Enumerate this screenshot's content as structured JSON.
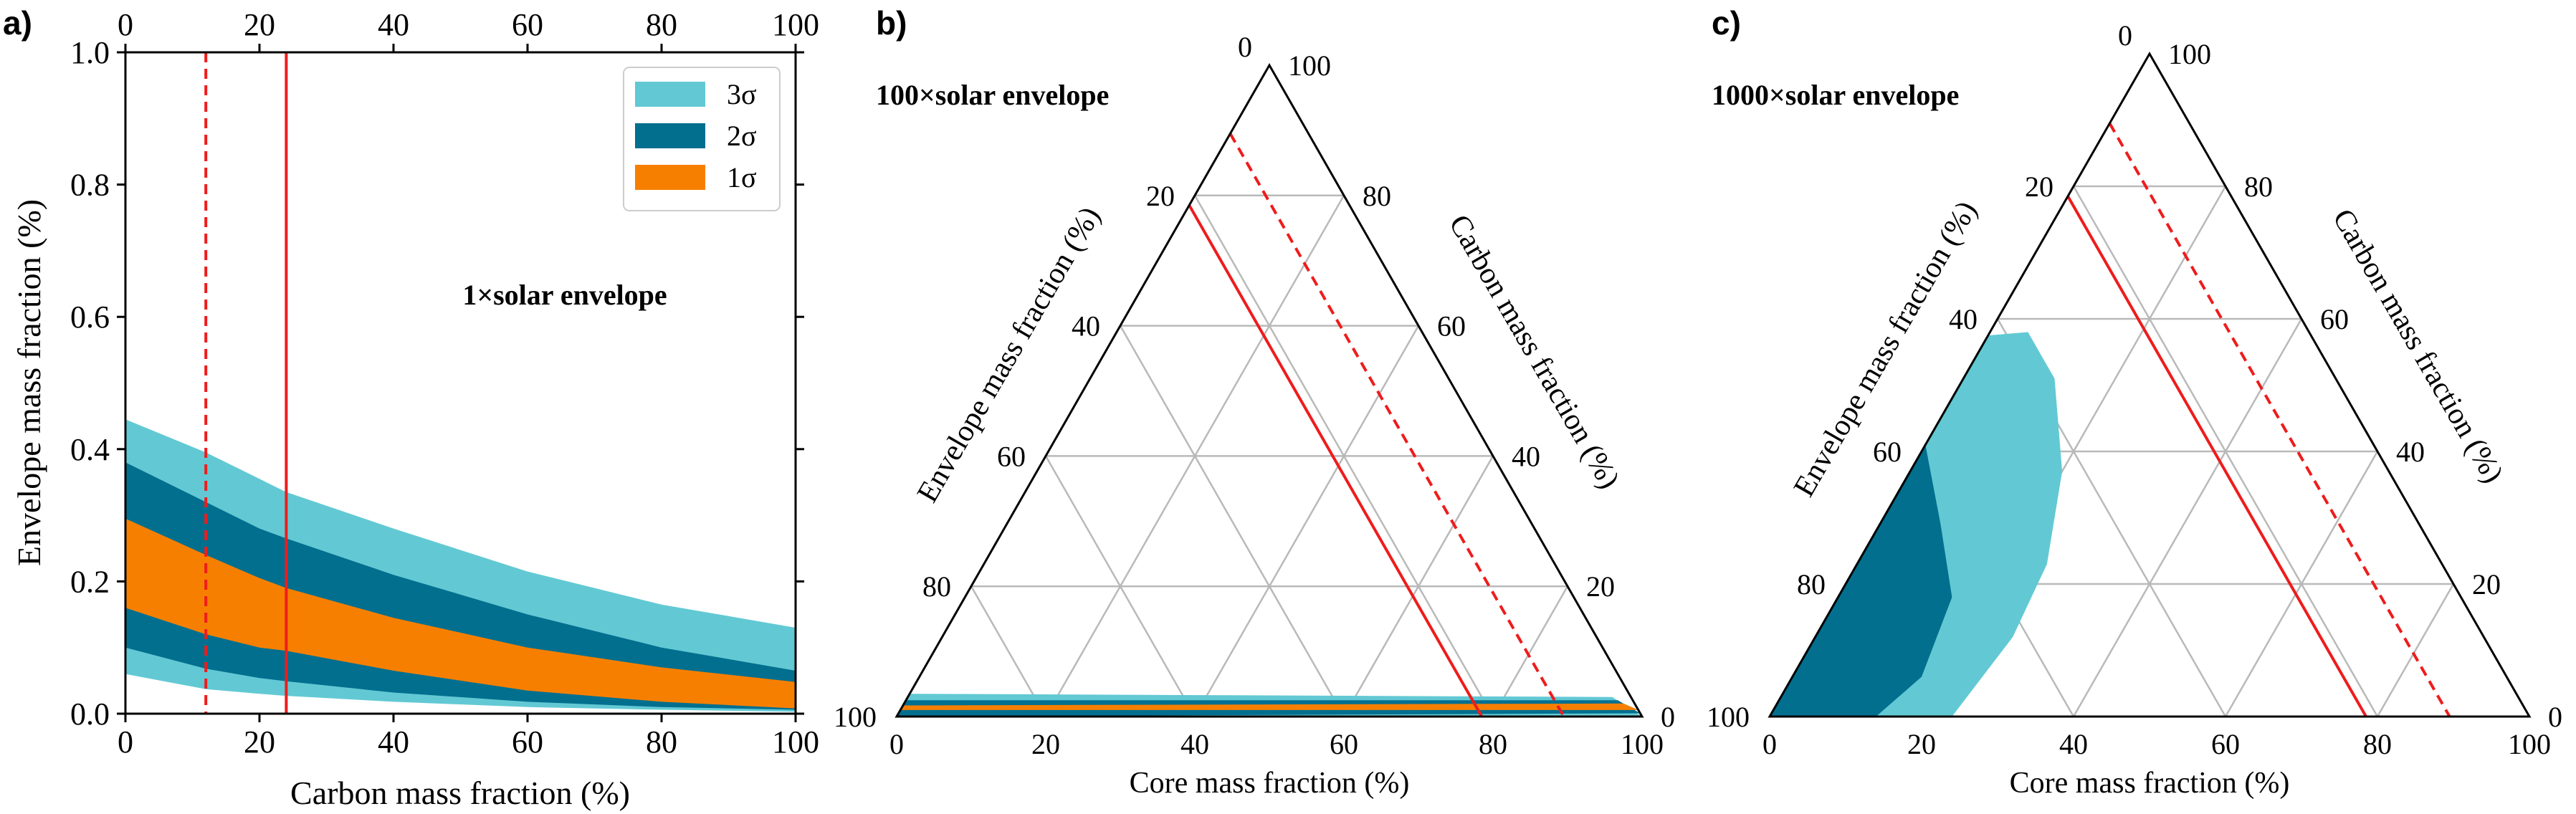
{
  "colors": {
    "sigma3": "#62c9d4",
    "sigma2": "#036f8f",
    "sigma1": "#f77f00",
    "red": "#ee1c1c",
    "grid": "#b9b9b9",
    "axis": "#000000"
  },
  "panel_a": {
    "label": "a)",
    "title": "1×solar envelope",
    "xlabel": "Carbon mass fraction (%)",
    "ylabel": "Envelope mass fraction (%)",
    "x_ticks": [
      "0",
      "20",
      "40",
      "60",
      "80",
      "100"
    ],
    "top_ticks": [
      "0",
      "20",
      "40",
      "60",
      "80",
      "100"
    ],
    "y_ticks": [
      "0.0",
      "0.2",
      "0.4",
      "0.6",
      "0.8",
      "1.0"
    ],
    "legend": [
      "3σ",
      "2σ",
      "1σ"
    ]
  },
  "panel_b": {
    "label": "b)",
    "title": "100×solar envelope",
    "bottom_label": "Core mass fraction (%)",
    "left_label": "Envelope mass fraction (%)",
    "right_label": "Carbon mass fraction (%)",
    "bottom_ticks": [
      "0",
      "20",
      "40",
      "60",
      "80",
      "100"
    ],
    "left_ticks": [
      "0",
      "20",
      "40",
      "60",
      "80",
      "100"
    ],
    "right_ticks": [
      "0",
      "20",
      "40",
      "60",
      "80",
      "100"
    ]
  },
  "panel_c": {
    "label": "c)",
    "title": "1000×solar envelope",
    "bottom_label": "Core mass fraction (%)",
    "left_label": "Envelope mass fraction (%)",
    "right_label": "Carbon mass fraction (%)",
    "bottom_ticks": [
      "0",
      "20",
      "40",
      "60",
      "80",
      "100"
    ],
    "left_ticks": [
      "0",
      "20",
      "40",
      "60",
      "80",
      "100"
    ],
    "right_ticks": [
      "0",
      "20",
      "40",
      "60",
      "80",
      "100"
    ]
  },
  "chart_data": [
    {
      "panel": "a",
      "type": "area",
      "title": "1×solar envelope",
      "xlabel": "Carbon mass fraction (%)",
      "ylabel": "Envelope mass fraction (%)",
      "xlim": [
        0,
        100
      ],
      "ylim": [
        0,
        1
      ],
      "grid": false,
      "legend_position": "top-right",
      "x": [
        0,
        12,
        20,
        24,
        40,
        60,
        80,
        100
      ],
      "series": [
        {
          "name": "3σ",
          "lower": [
            0.06,
            0.037,
            0.03,
            0.027,
            0.018,
            0.01,
            0.006,
            0.003
          ],
          "upper": [
            0.445,
            0.395,
            0.355,
            0.335,
            0.28,
            0.215,
            0.165,
            0.13
          ]
        },
        {
          "name": "2σ",
          "lower": [
            0.1,
            0.068,
            0.054,
            0.049,
            0.032,
            0.018,
            0.01,
            0.006
          ],
          "upper": [
            0.38,
            0.32,
            0.28,
            0.265,
            0.21,
            0.15,
            0.1,
            0.065
          ]
        },
        {
          "name": "1σ",
          "lower": [
            0.16,
            0.12,
            0.1,
            0.095,
            0.065,
            0.035,
            0.018,
            0.008
          ],
          "upper": [
            0.295,
            0.24,
            0.205,
            0.19,
            0.145,
            0.1,
            0.07,
            0.048
          ]
        }
      ],
      "vlines": [
        {
          "x": 24,
          "style": "solid"
        },
        {
          "x": 12,
          "style": "dashed"
        }
      ]
    },
    {
      "panel": "b",
      "type": "area",
      "title": "100×solar envelope",
      "components": [
        "Core mass fraction (%)",
        "Envelope mass fraction (%)",
        "Carbon mass fraction (%)"
      ],
      "regions": [
        {
          "name": "3σ",
          "points": [
            [
              0,
              100,
              0
            ],
            [
              0,
              96.5,
              3.5
            ],
            [
              94.5,
              2.5,
              3.0
            ],
            [
              100,
              0,
              0
            ]
          ]
        },
        {
          "name": "2σ",
          "points": [
            [
              0,
              100,
              0
            ],
            [
              0,
              97.5,
              2.5
            ],
            [
              95.5,
              2.0,
              2.5
            ],
            [
              99.5,
              0,
              0.5
            ]
          ]
        },
        {
          "name": "1σ",
          "points": [
            [
              0,
              99,
              1
            ],
            [
              0,
              98.3,
              1.7
            ],
            [
              96.5,
              1.5,
              2.0
            ],
            [
              99,
              0,
              1
            ]
          ]
        }
      ],
      "hlines": [
        {
          "envelope": 21.5,
          "style": "solid"
        },
        {
          "envelope": 10.5,
          "style": "dashed"
        }
      ]
    },
    {
      "panel": "c",
      "type": "area",
      "title": "1000×solar envelope",
      "components": [
        "Core mass fraction (%)",
        "Envelope mass fraction (%)",
        "Carbon mass fraction (%)"
      ],
      "regions": [
        {
          "name": "3σ",
          "points": [
            [
              0,
              100,
              0
            ],
            [
              0,
              42.5,
              57.5
            ],
            [
              5,
              37,
              58
            ],
            [
              12,
              37,
              51
            ],
            [
              20,
              43,
              37
            ],
            [
              25,
              52,
              23
            ],
            [
              26,
              62,
              12
            ],
            [
              24,
              76,
              0
            ]
          ]
        },
        {
          "name": "2σ",
          "points": [
            [
              0,
              100,
              0
            ],
            [
              0,
              59,
              41
            ],
            [
              8,
              63,
              29
            ],
            [
              15,
              67,
              18
            ],
            [
              17,
              77,
              6
            ],
            [
              14,
              86,
              0
            ]
          ]
        }
      ],
      "hlines": [
        {
          "envelope": 21.5,
          "style": "solid"
        },
        {
          "envelope": 10.5,
          "style": "dashed"
        }
      ]
    }
  ]
}
